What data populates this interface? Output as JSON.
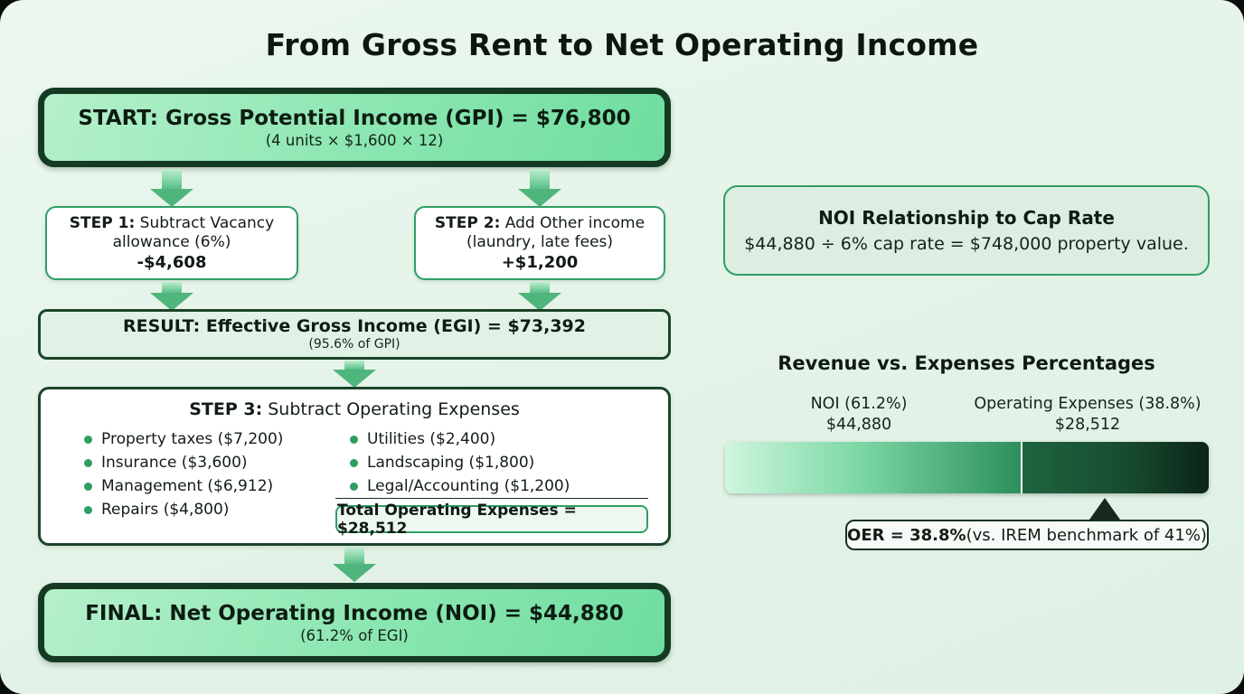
{
  "title": "From Gross Rent to Net Operating Income",
  "flow": {
    "start": {
      "title": "START: Gross Potential Income (GPI) = $76,800",
      "subtitle": "(4 units × $1,600 × 12)"
    },
    "step1": {
      "label": "STEP 1:",
      "text": " Subtract Vacancy allowance (6%)",
      "value": "-$4,608"
    },
    "step2": {
      "label": "STEP 2:",
      "text": " Add Other income (laundry, late fees)",
      "value": "+$1,200"
    },
    "result": {
      "title": "RESULT: Effective Gross Income (EGI) = $73,392",
      "subtitle": "(95.6% of GPI)"
    },
    "step3": {
      "label": "STEP 3:",
      "text": " Subtract Operating Expenses",
      "expenses_left": [
        "Property taxes ($7,200)",
        "Insurance ($3,600)",
        "Management ($6,912)",
        "Repairs ($4,800)"
      ],
      "expenses_right": [
        "Utilities ($2,400)",
        "Landscaping ($1,800)",
        "Legal/Accounting ($1,200)"
      ],
      "total": "Total Operating Expenses = $28,512"
    },
    "final": {
      "title": "FINAL: Net Operating Income (NOI) = $44,880",
      "subtitle": "(61.2% of EGI)"
    }
  },
  "cap_rate": {
    "title": "NOI Relationship to Cap Rate",
    "text": "$44,880 ÷ 6% cap rate = $748,000 property value."
  },
  "bar_section": {
    "title": "Revenue vs. Expenses Percentages",
    "noi_label": "NOI (61.2%)",
    "noi_value": "$44,880",
    "expenses_label": "Operating Expenses (38.8%)",
    "expenses_value": "$28,512",
    "callout_bold": "OER = 38.8%",
    "callout_rest": " (vs. IREM benchmark of 41%)"
  },
  "chart_data": {
    "type": "bar",
    "orientation": "horizontal-stacked",
    "title": "Revenue vs. Expenses Percentages",
    "categories": [
      "NOI",
      "Operating Expenses"
    ],
    "values": [
      61.2,
      38.8
    ],
    "value_labels": [
      "$44,880",
      "$28,512"
    ],
    "unit": "%",
    "annotation": "OER = 38.8% (vs. IREM benchmark of 41%)",
    "colors": {
      "noi_start": "#cff6de",
      "noi_end": "#2e8f5c",
      "expenses_start": "#1f6440",
      "expenses_end": "#0c2417"
    }
  },
  "theme": {
    "panel_bg": "#e6f4ea",
    "dark_border": "#153a24",
    "green_border": "#2f9e63",
    "hero_fill": "#8ae6b0",
    "arrow": "#4fb57c"
  }
}
